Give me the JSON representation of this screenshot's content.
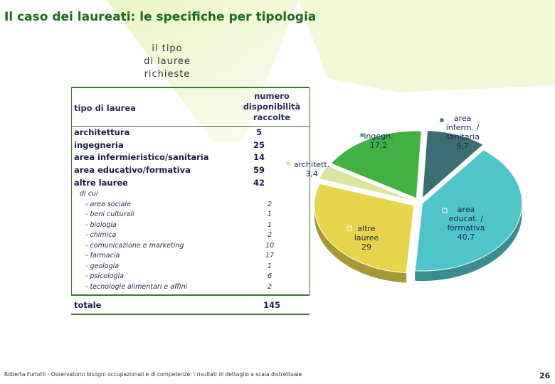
{
  "title": "Il caso dei laureati: le specifiche per tipologia",
  "subtitle_line1": "il tipo",
  "subtitle_line2": "di lauree richieste",
  "table": {
    "col_left": "tipo di laurea",
    "col_right_1": "numero",
    "col_right_2": "disponibilità",
    "col_right_3": "raccolte",
    "rows": [
      {
        "label": "architettura",
        "value": "5"
      },
      {
        "label": "ingegneria",
        "value": "25"
      },
      {
        "label": "area infermieristico/sanitaria",
        "value": "14"
      },
      {
        "label": "area educativo/formativa",
        "value": "59"
      },
      {
        "label": "altre lauree",
        "value": "42"
      }
    ],
    "dicui": "di cui",
    "subrows": [
      {
        "label": "- area sociale",
        "value": "2"
      },
      {
        "label": "- beni culturali",
        "value": "1"
      },
      {
        "label": "- biologia",
        "value": "1"
      },
      {
        "label": "- chimica",
        "value": "2"
      },
      {
        "label": "- comunicazione e marketing",
        "value": "10"
      },
      {
        "label": "- farmacia",
        "value": "17"
      },
      {
        "label": "- geologia",
        "value": "1"
      },
      {
        "label": "- psicologia",
        "value": "6"
      },
      {
        "label": "- tecnologie alimentari e affini",
        "value": "2"
      }
    ],
    "total_label": "totale",
    "total_value": "145"
  },
  "chart_data": {
    "type": "pie",
    "slices": [
      {
        "label": [
          "area",
          "inferm. /",
          "sanitaria"
        ],
        "value": 9.7,
        "display": "9,7",
        "color": "#3d6e74"
      },
      {
        "label": [
          "area",
          "educat. /",
          "formativa"
        ],
        "value": 40.7,
        "display": "40,7",
        "color": "#4fc4c9"
      },
      {
        "label": [
          "altre",
          "lauree"
        ],
        "value": 29,
        "display": "29",
        "color": "#e6d54a"
      },
      {
        "label": [
          "architett."
        ],
        "value": 3.4,
        "display": "3,4",
        "color": "#d8e6a0"
      },
      {
        "label": [
          "ingegn."
        ],
        "value": 17.2,
        "display": "17,2",
        "color": "#43b043"
      }
    ]
  },
  "footer": "Roberta Furlotti - Osservatorio bisogni occupazionali e di competenze: i risultati di dettaglio a scala distrettuale",
  "page_number": "26"
}
